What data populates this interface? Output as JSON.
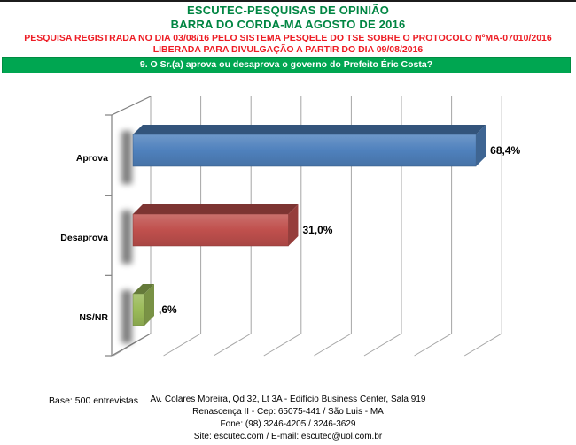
{
  "header": {
    "title_line1": "ESCUTEC-PESQUISAS DE OPINIÃO",
    "title_line2": "BARRA DO CORDA-MA AGOSTO DE 2016",
    "registration_line1": "PESQUISA REGISTRADA NO DIA 03/08/16 PELO SISTEMA PESQELE DO TSE SOBRE O PROTOCOLO NºMA-07010/2016",
    "registration_line2": "LIBERADA PARA DIVULGAÇÃO A PARTIR DO DIA 09/08/2016",
    "question_banner": "9. O Sr.(a) aprova ou desaprova o governo do Prefeito Éric Costa?",
    "colors": {
      "title_green": "#008542",
      "registration_red": "#ED1C24",
      "banner_background": "#00A651",
      "banner_border": "#008C42",
      "banner_text": "#FFFFFF"
    }
  },
  "chart_data": {
    "type": "bar",
    "orientation": "horizontal",
    "style": "3d",
    "title": "9. O Sr.(a) aprova ou desaprova o governo do Prefeito Éric Costa?",
    "categories": [
      "Aprova",
      "Desaprova",
      "NS/NR"
    ],
    "values": [
      68.4,
      31.0,
      0.6
    ],
    "value_labels": [
      "68,4%",
      "31,0%",
      ",6%"
    ],
    "bar_colors": [
      "#4F81BD",
      "#C0504D",
      "#9BBB59"
    ],
    "xlim": [
      0,
      70
    ],
    "gridline_interval": 10,
    "grid": true,
    "legend": "none",
    "grid_color": "#A6A6A6",
    "axis_color": "#808080"
  },
  "footer": {
    "base_note": "Base: 500 entrevistas",
    "address": [
      "Av. Colares Moreira, Qd 32, Lt 3A - Edifício Business Center, Sala 919",
      "Renascença II - Cep: 65075-441 / São Luis - MA",
      "Fone: (98) 3246-4205 / 3246-3629",
      "Site: escutec.com / E-mail: escutec@uol.com.br"
    ]
  }
}
